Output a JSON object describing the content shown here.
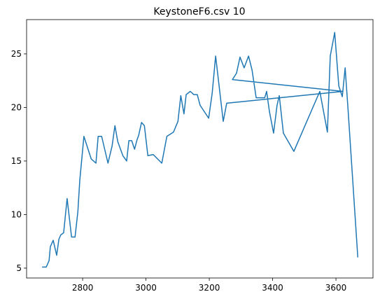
{
  "chart_data": {
    "type": "line",
    "title": "KeystoneF6.csv 10",
    "x": [
      2672,
      2685,
      2694,
      2698,
      2707,
      2718,
      2725,
      2731,
      2740,
      2751,
      2765,
      2776,
      2785,
      2791,
      2804,
      2827,
      2842,
      2849,
      2860,
      2880,
      2893,
      2902,
      2911,
      2927,
      2939,
      2946,
      2955,
      2964,
      2972,
      2977,
      2986,
      2995,
      3006,
      3023,
      3050,
      3066,
      3087,
      3101,
      3110,
      3120,
      3127,
      3140,
      3151,
      3162,
      3171,
      3198,
      3209,
      3220,
      3244,
      3255,
      3622,
      3273,
      3286,
      3297,
      3310,
      3324,
      3335,
      3348,
      3375,
      3381,
      3390,
      3403,
      3414,
      3421,
      3434,
      3467,
      3549,
      3573,
      3582,
      3596,
      3609,
      3620,
      3629,
      3638,
      3669
    ],
    "series": [
      {
        "color": "#1f77b4",
        "values": [
          5.1,
          5.1,
          5.7,
          7.0,
          7.6,
          6.2,
          7.7,
          8.1,
          8.3,
          11.5,
          7.9,
          7.9,
          10.3,
          13.2,
          17.3,
          15.2,
          14.8,
          17.3,
          17.3,
          14.8,
          16.4,
          18.3,
          16.8,
          15.5,
          15.0,
          16.9,
          16.9,
          16.1,
          17.0,
          17.4,
          18.6,
          18.3,
          15.5,
          15.6,
          14.8,
          17.3,
          17.7,
          18.7,
          21.1,
          19.4,
          21.2,
          21.5,
          21.2,
          21.2,
          20.2,
          19.0,
          21.3,
          24.8,
          18.7,
          20.4,
          21.5,
          22.6,
          23.2,
          24.7,
          23.7,
          24.8,
          23.5,
          20.9,
          20.9,
          21.5,
          19.6,
          17.6,
          20.2,
          21.1,
          17.6,
          15.9,
          21.5,
          17.7,
          24.8,
          27.0,
          22.0,
          21.0,
          23.7,
          19.9,
          6.0
        ]
      }
    ],
    "xlim": [
      2623,
      3717
    ],
    "ylim": [
      4.08,
      28.2
    ],
    "xticks": [
      2800,
      3000,
      3200,
      3400,
      3600
    ],
    "yticks": [
      5,
      10,
      15,
      20,
      25
    ]
  }
}
